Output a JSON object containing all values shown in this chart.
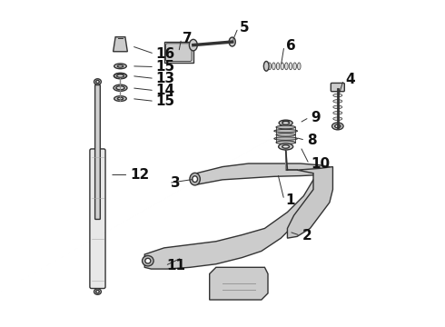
{
  "title": "",
  "bg_color": "#ffffff",
  "line_color": "#333333",
  "label_color": "#111111",
  "label_fontsize": 11,
  "fig_width": 4.9,
  "fig_height": 3.6,
  "dpi": 100
}
